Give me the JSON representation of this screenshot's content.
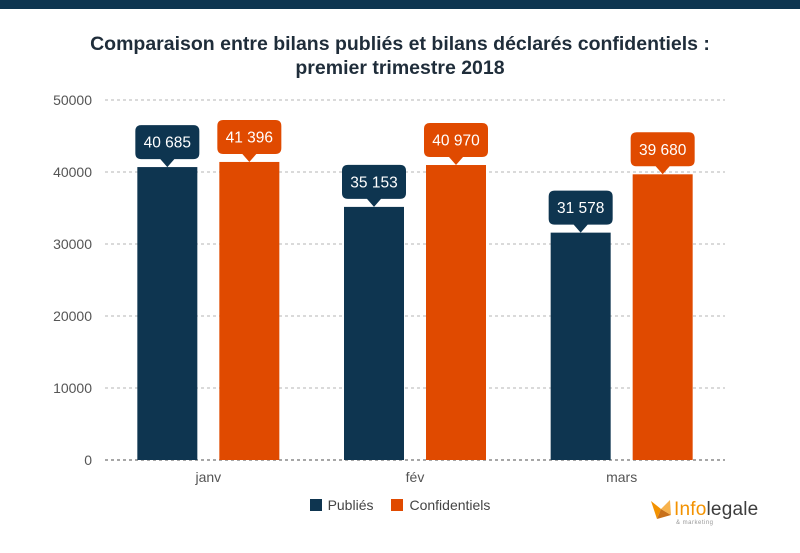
{
  "title_line1": "Comparaison entre bilans publiés et bilans déclarés confidentiels :",
  "title_line2": "premier trimestre 2018",
  "chart_data": {
    "type": "bar",
    "categories": [
      "janv",
      "fév",
      "mars"
    ],
    "series": [
      {
        "name": "Publiés",
        "values": [
          40685,
          35153,
          31578
        ],
        "labels": [
          "40 685",
          "35 153",
          "31 578"
        ],
        "color": "#0e3550"
      },
      {
        "name": "Confidentiels",
        "values": [
          41396,
          40970,
          39680
        ],
        "labels": [
          "41 396",
          "40 970",
          "39 680"
        ],
        "color": "#e04a00"
      }
    ],
    "ylim": [
      0,
      50000
    ],
    "yticks": [
      0,
      10000,
      20000,
      30000,
      40000,
      50000
    ],
    "grid": true,
    "legend": "bottom-center"
  },
  "logo": {
    "info": "Info",
    "legale": "legale",
    "tagline": "& marketing"
  }
}
